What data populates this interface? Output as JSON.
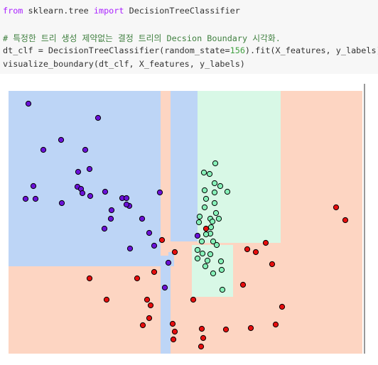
{
  "code": {
    "lines": [
      [
        {
          "text": "from",
          "color": "#aa22ff"
        },
        {
          "text": " sklearn.tree ",
          "color": "#333333"
        },
        {
          "text": "import",
          "color": "#aa22ff"
        },
        {
          "text": " DecisionTreeClassifier",
          "color": "#333333"
        }
      ],
      [],
      [
        {
          "text": "# 특정한 트리 생성 제약없는 결정 트리의 Decsion Boundary 시각화.",
          "color": "#408040"
        }
      ],
      [
        {
          "text": "dt_clf = DecisionTreeClassifier(random_state=",
          "color": "#333333"
        },
        {
          "text": "156",
          "color": "#40a040"
        },
        {
          "text": ").fit(X_features, y_labels)",
          "color": "#333333"
        }
      ],
      [
        {
          "text": "visualize_boundary(dt_clf, X_features, y_labels)",
          "color": "#333333"
        }
      ]
    ]
  },
  "chart_data": {
    "type": "scatter",
    "xlim": [
      0,
      498
    ],
    "ylim": [
      0,
      370
    ],
    "series": [
      {
        "color": "#6a11d8",
        "x": [
          28,
          126,
          74,
          49,
          108,
          114,
          98,
          35,
          97,
          102,
          104,
          115,
          136,
          160,
          166,
          170,
          145,
          24,
          38,
          75,
          144,
          188,
          135,
          198,
          213,
          166,
          171,
          205,
          220,
          225,
          266
        ],
        "values": [
          352,
          332,
          301,
          287,
          287,
          260,
          256,
          236,
          235,
          232,
          226,
          222,
          228,
          219,
          219,
          208,
          202,
          218,
          218,
          212,
          190,
          190,
          176,
          170,
          227,
          210,
          148,
          152,
          93,
          128,
          166
        ]
      },
      {
        "color": "#86f0b8",
        "x": [
          275,
          283,
          291,
          290,
          276,
          298,
          308,
          290,
          278,
          276,
          290,
          292,
          284,
          269,
          268,
          287,
          296,
          285,
          284,
          288,
          293,
          272,
          266,
          284,
          273,
          266,
          280,
          277,
          299,
          300,
          301,
          288,
          278
        ],
        "values": [
          255,
          253,
          268,
          240,
          230,
          236,
          228,
          227,
          218,
          206,
          212,
          198,
          190,
          193,
          185,
          186,
          190,
          178,
          169,
          158,
          153,
          158,
          146,
          140,
          141,
          134,
          131,
          123,
          130,
          118,
          90,
          113,
          168
        ]
      },
      {
        "color": "#e60d0d",
        "x": [
          461,
          474,
          216,
          234,
          336,
          362,
          348,
          371,
          114,
          181,
          205,
          330,
          138,
          195,
          200,
          260,
          385,
          198,
          189,
          231,
          234,
          272,
          306,
          341,
          376,
          232,
          274,
          271,
          278
        ],
        "values": [
          206,
          188,
          160,
          143,
          147,
          156,
          143,
          126,
          106,
          106,
          115,
          97,
          76,
          76,
          68,
          76,
          66,
          50,
          40,
          42,
          31,
          35,
          34,
          36,
          41,
          20,
          22,
          10,
          176
        ]
      }
    ]
  }
}
